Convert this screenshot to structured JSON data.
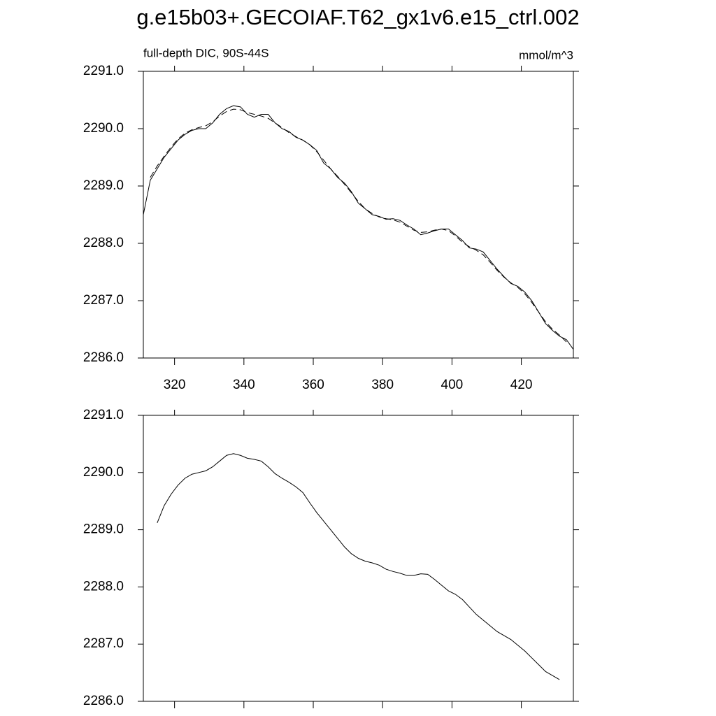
{
  "title": "g.e15b03+.GECOIAF.T62_gx1v6.e15_ctrl.002",
  "chart_data": [
    {
      "type": "line",
      "left_label": "full-depth DIC, 90S-44S",
      "right_label": "mmol/m^3",
      "x": [
        311,
        313,
        315,
        317,
        319,
        321,
        323,
        325,
        327,
        329,
        331,
        333,
        335,
        337,
        339,
        341,
        343,
        345,
        347,
        349,
        351,
        353,
        355,
        357,
        359,
        361,
        363,
        365,
        367,
        369,
        371,
        373,
        375,
        377,
        379,
        381,
        383,
        385,
        387,
        389,
        391,
        393,
        395,
        397,
        399,
        401,
        403,
        405,
        407,
        409,
        411,
        413,
        415,
        417,
        419,
        421,
        423,
        425,
        427,
        429,
        431,
        433,
        435
      ],
      "series": [
        {
          "color": "#000000",
          "dash": false,
          "values": [
            2288.5,
            2289.1,
            2289.3,
            2289.5,
            2289.65,
            2289.8,
            2289.9,
            2289.97,
            2290.0,
            2290.0,
            2290.1,
            2290.25,
            2290.35,
            2290.4,
            2290.38,
            2290.25,
            2290.2,
            2290.25,
            2290.25,
            2290.1,
            2290.0,
            2289.95,
            2289.85,
            2289.8,
            2289.72,
            2289.62,
            2289.4,
            2289.3,
            2289.15,
            2289.05,
            2288.9,
            2288.7,
            2288.6,
            2288.5,
            2288.47,
            2288.42,
            2288.43,
            2288.4,
            2288.32,
            2288.25,
            2288.15,
            2288.18,
            2288.22,
            2288.25,
            2288.25,
            2288.15,
            2288.05,
            2287.92,
            2287.9,
            2287.85,
            2287.7,
            2287.55,
            2287.42,
            2287.3,
            2287.25,
            2287.15,
            2287.0,
            2286.8,
            2286.6,
            2286.48,
            2286.38,
            2286.32,
            2286.15
          ]
        },
        {
          "color": "#000000",
          "dash": true,
          "values": [
            null,
            2289.15,
            2289.35,
            2289.52,
            2289.68,
            2289.82,
            2289.92,
            2289.98,
            2290.02,
            2290.05,
            2290.12,
            2290.22,
            2290.3,
            2290.34,
            2290.33,
            2290.28,
            2290.25,
            2290.22,
            2290.18,
            2290.1,
            2290.02,
            2289.93,
            2289.86,
            2289.8,
            2289.72,
            2289.6,
            2289.45,
            2289.3,
            2289.17,
            2289.03,
            2288.88,
            2288.73,
            2288.6,
            2288.52,
            2288.46,
            2288.43,
            2288.41,
            2288.37,
            2288.3,
            2288.23,
            2288.19,
            2288.2,
            2288.23,
            2288.25,
            2288.22,
            2288.13,
            2288.02,
            2287.94,
            2287.88,
            2287.8,
            2287.67,
            2287.53,
            2287.41,
            2287.31,
            2287.23,
            2287.12,
            2286.97,
            2286.8,
            2286.63,
            2286.5,
            2286.4,
            2286.28,
            null
          ]
        }
      ],
      "xlim": [
        311,
        435
      ],
      "xticks": [
        320,
        340,
        360,
        380,
        400,
        420
      ],
      "xtick_labels": true,
      "ylim": [
        2286,
        2291
      ],
      "yticks": [
        {
          "value": 2286,
          "label": "2286.0"
        },
        {
          "value": 2287,
          "label": "2287.0"
        },
        {
          "value": 2288,
          "label": "2288.0"
        },
        {
          "value": 2289,
          "label": "2289.0"
        },
        {
          "value": 2290,
          "label": "2290.0"
        },
        {
          "value": 2291,
          "label": "2291.0"
        }
      ]
    },
    {
      "type": "line",
      "x": [
        315,
        317,
        319,
        321,
        323,
        325,
        327,
        329,
        331,
        333,
        335,
        337,
        339,
        341,
        343,
        345,
        347,
        349,
        351,
        353,
        355,
        357,
        359,
        361,
        363,
        365,
        367,
        369,
        371,
        373,
        375,
        377,
        379,
        381,
        383,
        385,
        387,
        389,
        391,
        393,
        395,
        397,
        399,
        401,
        403,
        405,
        407,
        409,
        411,
        413,
        415,
        417,
        419,
        421,
        423,
        425,
        427,
        429,
        431
      ],
      "series": [
        {
          "color": "#000000",
          "dash": false,
          "values": [
            2289.12,
            2289.42,
            2289.62,
            2289.78,
            2289.9,
            2289.97,
            2290.0,
            2290.03,
            2290.1,
            2290.2,
            2290.3,
            2290.33,
            2290.3,
            2290.25,
            2290.23,
            2290.2,
            2290.1,
            2289.98,
            2289.9,
            2289.83,
            2289.75,
            2289.65,
            2289.47,
            2289.3,
            2289.15,
            2289.0,
            2288.85,
            2288.7,
            2288.58,
            2288.5,
            2288.45,
            2288.42,
            2288.38,
            2288.31,
            2288.27,
            2288.24,
            2288.2,
            2288.2,
            2288.23,
            2288.22,
            2288.13,
            2288.03,
            2287.93,
            2287.87,
            2287.78,
            2287.65,
            2287.52,
            2287.42,
            2287.32,
            2287.22,
            2287.15,
            2287.08,
            2286.98,
            2286.88,
            2286.76,
            2286.64,
            2286.52,
            2286.45,
            2286.38
          ]
        }
      ],
      "xlim": [
        311,
        435
      ],
      "xticks": [
        320,
        340,
        360,
        380,
        400,
        420
      ],
      "xtick_labels": false,
      "ylim": [
        2286,
        2291
      ],
      "yticks": [
        {
          "value": 2286,
          "label": "2286.0"
        },
        {
          "value": 2287,
          "label": "2287.0"
        },
        {
          "value": 2288,
          "label": "2288.0"
        },
        {
          "value": 2289,
          "label": "2289.0"
        },
        {
          "value": 2290,
          "label": "2290.0"
        },
        {
          "value": 2291,
          "label": "2291.0"
        }
      ]
    }
  ]
}
